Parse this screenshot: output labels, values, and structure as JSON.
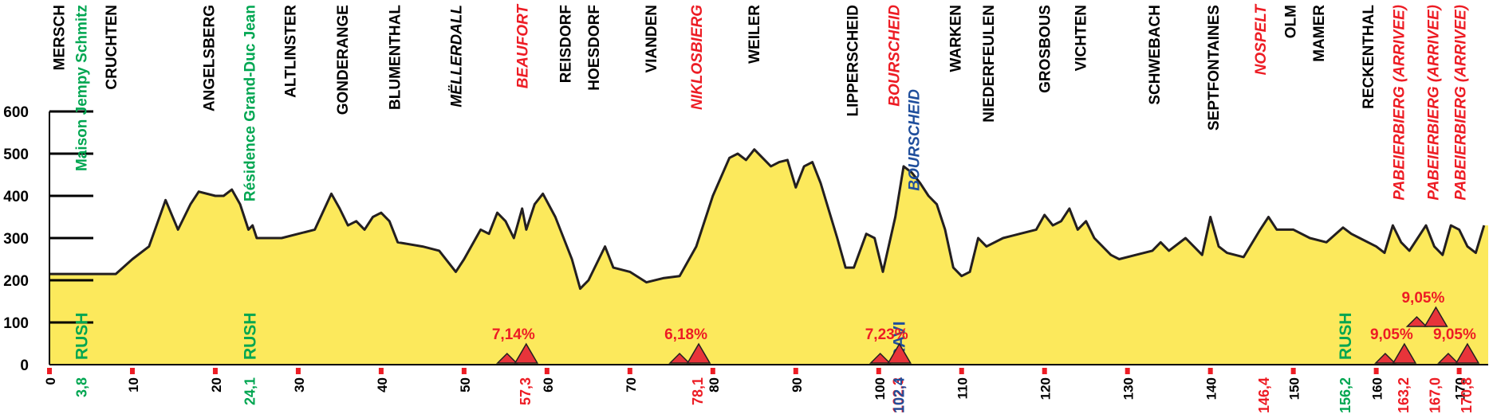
{
  "chart_data": {
    "type": "area",
    "fill_color": "#fce95c",
    "line_color": "#231f20",
    "xlim": [
      0,
      173.5
    ],
    "ylim": [
      0,
      600
    ],
    "xticks": [
      0,
      10,
      20,
      30,
      40,
      50,
      60,
      70,
      80,
      90,
      100,
      110,
      120,
      130,
      140,
      150,
      160,
      170
    ],
    "yticks": [
      0,
      100,
      200,
      300,
      400,
      500,
      600
    ],
    "x": [
      0,
      5,
      8,
      10,
      12,
      14,
      15.5,
      17,
      18,
      20,
      21,
      22,
      23,
      24,
      24.5,
      25,
      28,
      30,
      32,
      34,
      35,
      36,
      37,
      38,
      39,
      40,
      41,
      42,
      45,
      47,
      49,
      50,
      52,
      53,
      54,
      55,
      56,
      57,
      57.5,
      58.5,
      59.5,
      61,
      63,
      64,
      65,
      67,
      68,
      70,
      72,
      74,
      76,
      78,
      80,
      82,
      83,
      84,
      85,
      86,
      87,
      88,
      89,
      90,
      91,
      92,
      93,
      95,
      96,
      97,
      98.5,
      99.5,
      100.5,
      102,
      103,
      104,
      105,
      106,
      107,
      108,
      109,
      110,
      111,
      112,
      113,
      115,
      117,
      119,
      120,
      121,
      122,
      123,
      124,
      125,
      126,
      128,
      129,
      131,
      133,
      134,
      135,
      137,
      138,
      139,
      140,
      141,
      142,
      144,
      146,
      147,
      148,
      150,
      152,
      154,
      156,
      157,
      158,
      160,
      161,
      162,
      163,
      164,
      165,
      166,
      167,
      168,
      169,
      170,
      171,
      172,
      173
    ],
    "values": [
      215,
      215,
      215,
      250,
      280,
      390,
      320,
      380,
      410,
      400,
      400,
      415,
      380,
      320,
      330,
      300,
      300,
      310,
      320,
      405,
      370,
      330,
      340,
      320,
      350,
      360,
      340,
      290,
      280,
      270,
      220,
      250,
      320,
      310,
      360,
      340,
      300,
      370,
      320,
      380,
      405,
      350,
      250,
      180,
      200,
      280,
      230,
      220,
      195,
      205,
      210,
      280,
      400,
      490,
      500,
      485,
      510,
      490,
      470,
      480,
      485,
      420,
      470,
      480,
      430,
      300,
      230,
      230,
      310,
      300,
      220,
      350,
      470,
      455,
      430,
      400,
      380,
      320,
      230,
      210,
      220,
      300,
      280,
      300,
      310,
      320,
      355,
      330,
      340,
      370,
      320,
      340,
      300,
      260,
      250,
      260,
      270,
      290,
      270,
      300,
      280,
      260,
      350,
      280,
      265,
      255,
      320,
      350,
      320,
      320,
      300,
      290,
      325,
      310,
      300,
      280,
      265,
      330,
      290,
      270,
      300,
      330,
      280,
      260,
      330,
      320,
      280,
      265,
      330
    ],
    "places": [
      {
        "name": "MERSCH",
        "km": 1.1,
        "color": "#000000",
        "italic": false
      },
      {
        "name": "Maison Jempy Schmitz",
        "km": 3.8,
        "color": "#00a651",
        "italic": false
      },
      {
        "name": "CRUCHTEN",
        "km": 7.4,
        "color": "#000000",
        "italic": false
      },
      {
        "name": "ANGELSBERG",
        "km": 19.2,
        "color": "#000000",
        "italic": false
      },
      {
        "name": "Résidence Grand-Duc Jean",
        "km": 24.1,
        "color": "#00a651",
        "italic": false
      },
      {
        "name": "ALTLINSTER",
        "km": 29,
        "color": "#000000",
        "italic": false
      },
      {
        "name": "GONDERANGE",
        "km": 35.3,
        "color": "#000000",
        "italic": false
      },
      {
        "name": "BLUMENTHAL",
        "km": 41.6,
        "color": "#000000",
        "italic": false
      },
      {
        "name": "MËLLERDALL",
        "km": 49,
        "color": "#000000",
        "italic": true
      },
      {
        "name": "BEAUFORT",
        "km": 57,
        "color": "#ed1c24",
        "italic": true
      },
      {
        "name": "REISDORF",
        "km": 62.2,
        "color": "#000000",
        "italic": false
      },
      {
        "name": "HOESDORF",
        "km": 65.6,
        "color": "#000000",
        "italic": false
      },
      {
        "name": "VIANDEN",
        "km": 72.5,
        "color": "#000000",
        "italic": false
      },
      {
        "name": "NIKLOSBIERG",
        "km": 78,
        "color": "#ed1c24",
        "italic": true
      },
      {
        "name": "WEILER",
        "km": 84.9,
        "color": "#000000",
        "italic": false
      },
      {
        "name": "LIPPERSCHEID",
        "km": 96.8,
        "color": "#000000",
        "italic": false
      },
      {
        "name": "BOURSCHEID",
        "km": 101.8,
        "color": "#ed1c24",
        "italic": true
      },
      {
        "name": "BOURSCHEID",
        "km": 104.2,
        "color": "#1f4e9c",
        "italic": true
      },
      {
        "name": "WARKEN",
        "km": 109.2,
        "color": "#000000",
        "italic": false
      },
      {
        "name": "NIEDERFEULEN",
        "km": 113.2,
        "color": "#000000",
        "italic": false
      },
      {
        "name": "GROSBOUS",
        "km": 120,
        "color": "#000000",
        "italic": false
      },
      {
        "name": "VICHTEN",
        "km": 124.3,
        "color": "#000000",
        "italic": false
      },
      {
        "name": "SCHWEBACH",
        "km": 133.2,
        "color": "#000000",
        "italic": false
      },
      {
        "name": "SEPTFONTAINES",
        "km": 140.3,
        "color": "#000000",
        "italic": false
      },
      {
        "name": "NOSPELT",
        "km": 146,
        "color": "#ed1c24",
        "italic": true
      },
      {
        "name": "OLM",
        "km": 149.6,
        "color": "#000000",
        "italic": false
      },
      {
        "name": "MAMER",
        "km": 153,
        "color": "#000000",
        "italic": false
      },
      {
        "name": "RECKENTHAL",
        "km": 159,
        "color": "#000000",
        "italic": false
      },
      {
        "name": "PABEIERBIERG (ARRIVEE)",
        "km": 162.7,
        "color": "#ed1c24",
        "italic": true
      },
      {
        "name": "PABEIERBIERG (ARRIVEE)",
        "km": 166.8,
        "color": "#ed1c24",
        "italic": true
      },
      {
        "name": "PABEIERBIERG (ARRIVEE)",
        "km": 170.1,
        "color": "#ed1c24",
        "italic": true
      }
    ],
    "km_marks": [
      {
        "km": {
          "value": 3.8,
          "label": "3,8"
        },
        "color": "#00a651"
      },
      {
        "km": {
          "value": 24.1,
          "label": "24,1"
        },
        "color": "#00a651"
      },
      {
        "km": {
          "value": 57.3,
          "label": "57,3"
        },
        "color": "#ed1c24"
      },
      {
        "km": {
          "value": 78.1,
          "label": "78,1"
        },
        "color": "#ed1c24"
      },
      {
        "km": {
          "value": 102.3,
          "label": "102,3"
        },
        "color": "#ed1c24"
      },
      {
        "km": {
          "value": 102.4,
          "label": "102,4"
        },
        "color": "#1f4e9c"
      },
      {
        "km": {
          "value": 146.4,
          "label": "146,4"
        },
        "color": "#ed1c24"
      },
      {
        "km": {
          "value": 156.2,
          "label": "156,2"
        },
        "color": "#00a651"
      },
      {
        "km": {
          "value": 163.2,
          "label": "163,2"
        },
        "color": "#ed1c24"
      },
      {
        "km": {
          "value": 167,
          "label": "167,0"
        },
        "color": "#ed1c24"
      },
      {
        "km": {
          "value": 170.8,
          "label": "170,8"
        },
        "color": "#ed1c24"
      }
    ],
    "sprints": [
      {
        "km": 3.8,
        "label": "RUSH",
        "color": "#00a651"
      },
      {
        "km": 24.1,
        "label": "RUSH",
        "color": "#00a651"
      },
      {
        "km": 102.4,
        "label": "RAVI",
        "color": "#1f4e9c"
      },
      {
        "km": 156.2,
        "label": "RUSH",
        "color": "#00a651"
      }
    ],
    "climbs": [
      {
        "km": 57.3,
        "gradient": "7,14%"
      },
      {
        "km": 78.1,
        "gradient": "6,18%"
      },
      {
        "km": 102.3,
        "gradient": "7,23%"
      },
      {
        "km": 163.2,
        "gradient": "9,05%"
      },
      {
        "km": 167,
        "gradient": "9,05%"
      },
      {
        "km": 170.8,
        "gradient": "9,05%"
      }
    ],
    "climb_color": "#e8343a"
  }
}
